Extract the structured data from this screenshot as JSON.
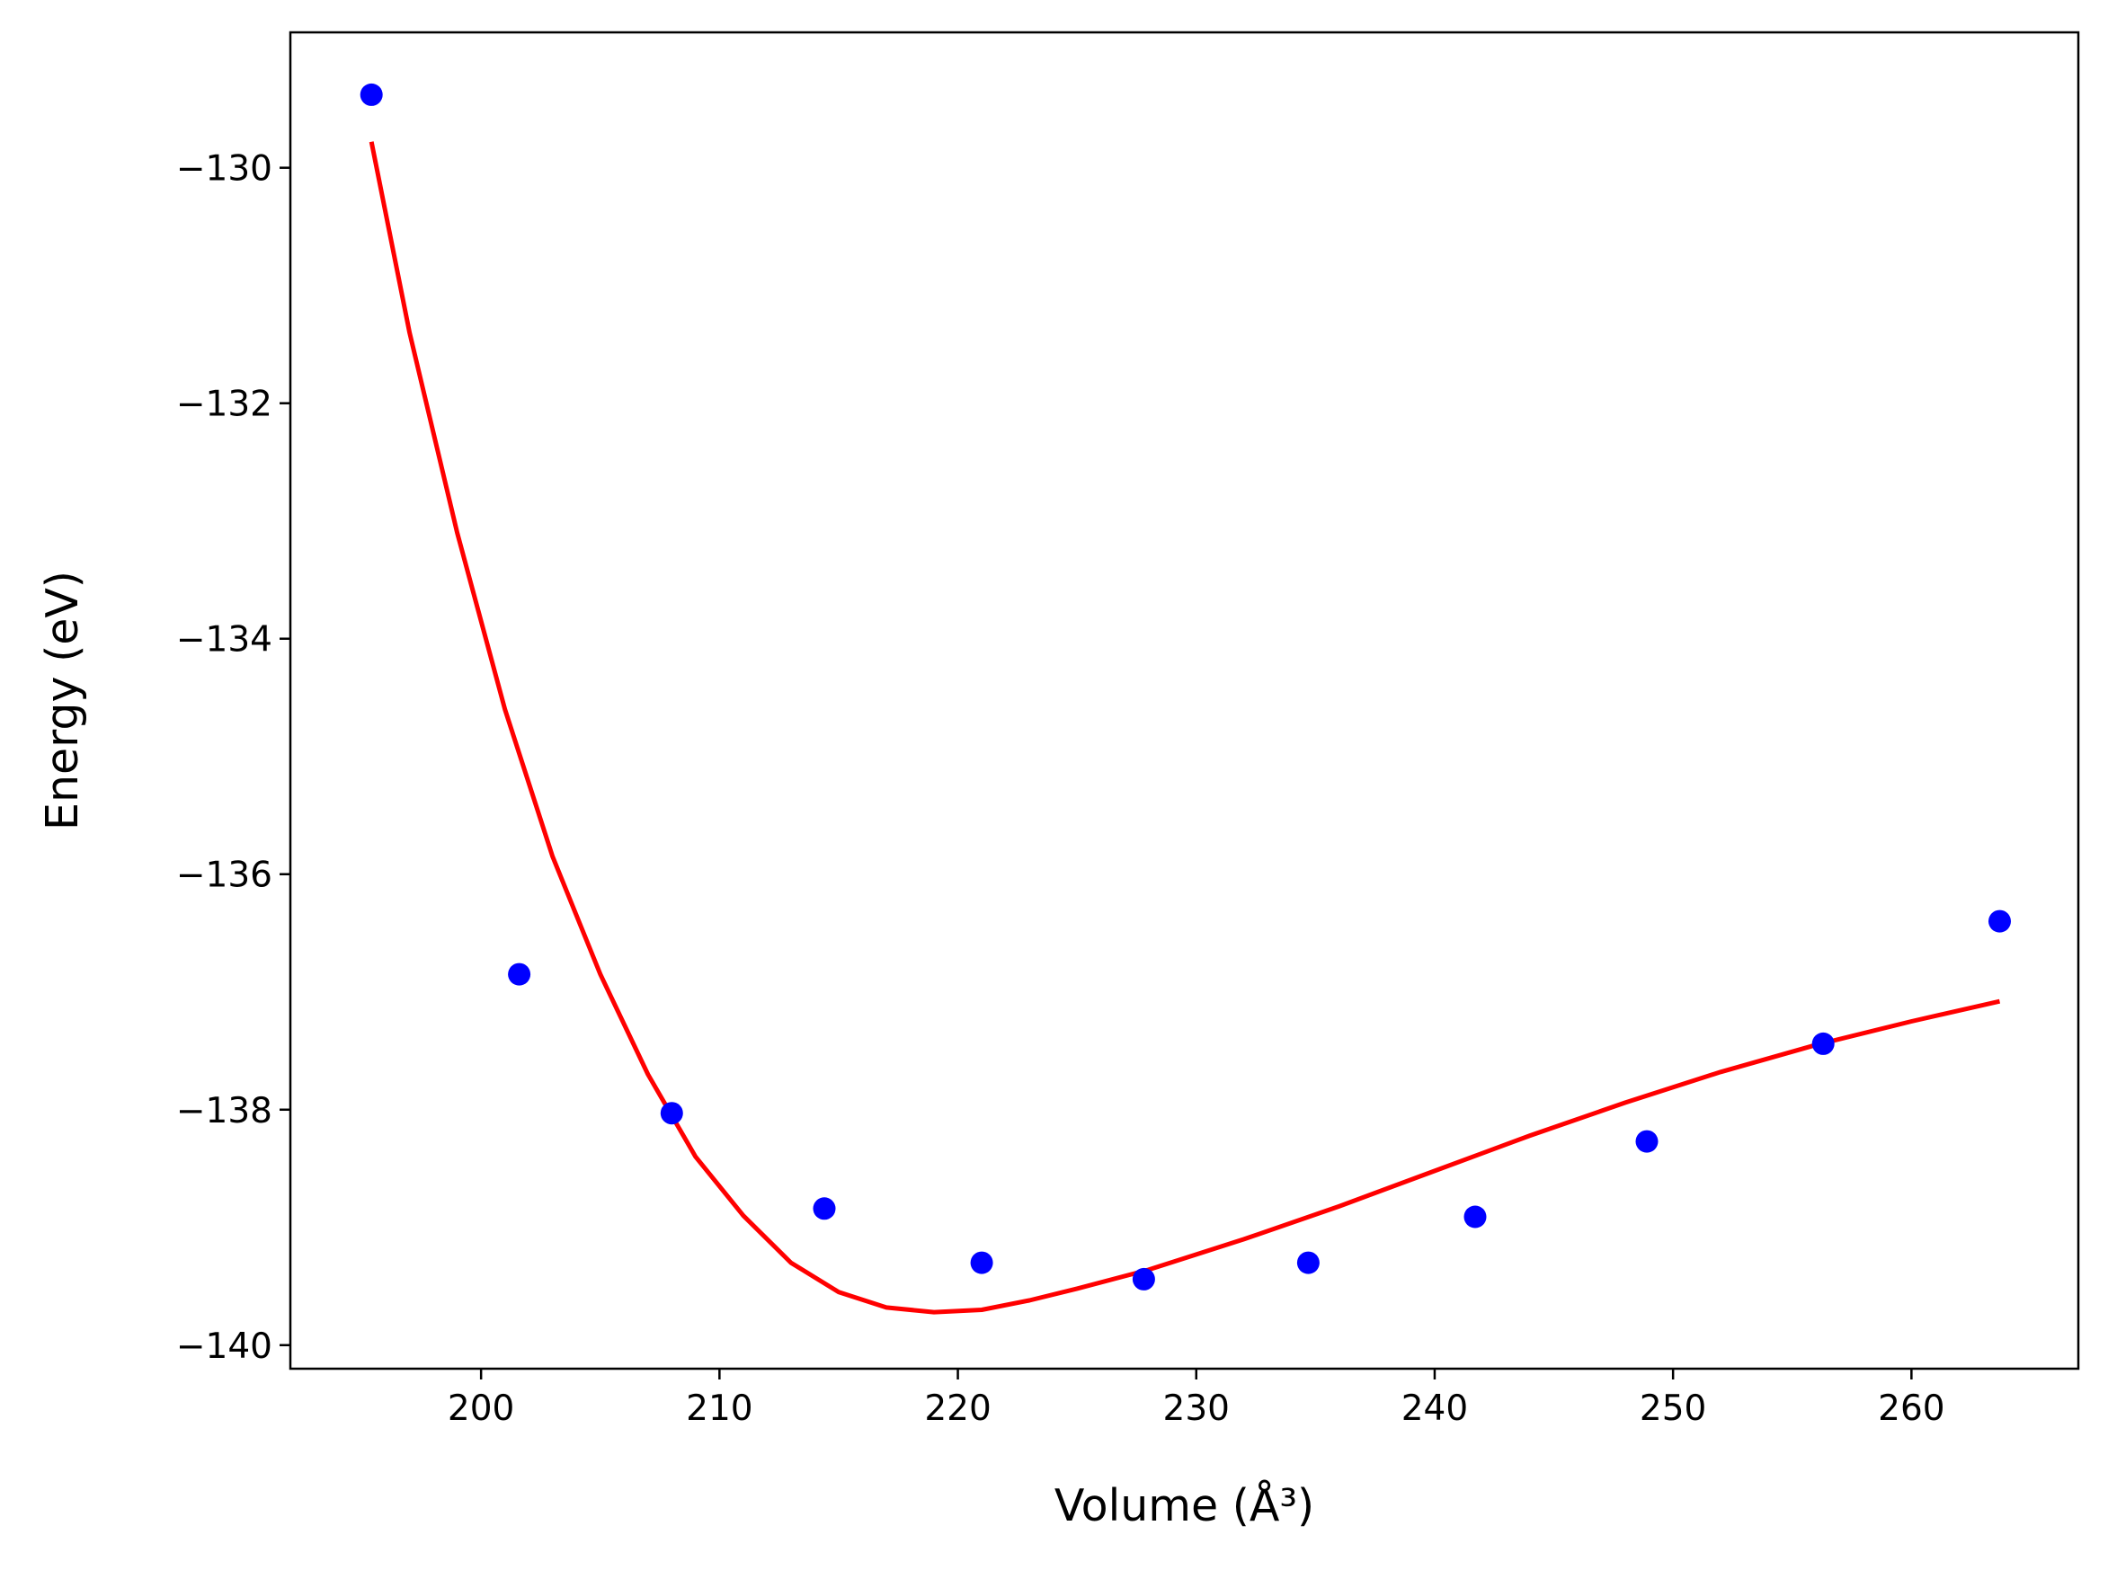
{
  "chart_data": {
    "type": "scatter",
    "xlabel": "Volume",
    "xlabel_unit": "(Å³)",
    "ylabel": "Energy",
    "ylabel_unit": "(eV)",
    "xlim": [
      192,
      267
    ],
    "ylim": [
      -140.2,
      -128.85
    ],
    "xticks": [
      200,
      210,
      220,
      230,
      240,
      250,
      260
    ],
    "yticks": [
      -130,
      -132,
      -134,
      -136,
      -138,
      -140
    ],
    "xtick_labels": [
      "200",
      "210",
      "220",
      "230",
      "240",
      "250",
      "260"
    ],
    "ytick_labels": [
      "−130",
      "−132",
      "−134",
      "−136",
      "−138",
      "−140"
    ],
    "grid": false,
    "legend": "none",
    "colors": {
      "points": "#0000ff",
      "fit": "#ff0000",
      "axes": "#000000"
    },
    "series": [
      {
        "kind": "points",
        "x": [
          195.4,
          201.6,
          208.0,
          214.4,
          221.0,
          227.8,
          234.7,
          241.7,
          248.9,
          256.3,
          263.7
        ],
        "y": [
          -129.38,
          -136.85,
          -138.03,
          -138.84,
          -139.3,
          -139.44,
          -139.3,
          -138.91,
          -138.27,
          -137.44,
          -136.4
        ]
      },
      {
        "kind": "fit-curve",
        "x": [
          195.4,
          197.0,
          199.0,
          201.0,
          203.0,
          205.0,
          207.0,
          209.0,
          211.0,
          213.0,
          215.0,
          217.0,
          219.0,
          221.0,
          223.0,
          225.0,
          228.0,
          232.0,
          236.0,
          240.0,
          244.0,
          248.0,
          252.0,
          256.0,
          260.0,
          263.7
        ],
        "y": [
          -129.78,
          -131.4,
          -133.1,
          -134.6,
          -135.85,
          -136.85,
          -137.7,
          -138.4,
          -138.9,
          -139.3,
          -139.55,
          -139.68,
          -139.72,
          -139.7,
          -139.62,
          -139.52,
          -139.36,
          -139.1,
          -138.82,
          -138.52,
          -138.22,
          -137.94,
          -137.68,
          -137.45,
          -137.25,
          -137.08
        ]
      }
    ]
  }
}
